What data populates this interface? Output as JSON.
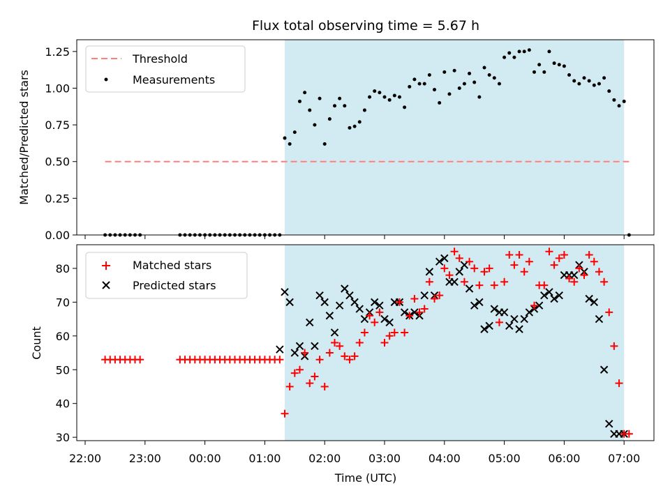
{
  "chart_data": [
    {
      "type": "scatter",
      "title": "Flux total observing time = 5.67 h",
      "xlabel": "",
      "ylabel": "Matched/Predicted stars",
      "ylim": [
        0,
        1.33
      ],
      "yticks": [
        "0.00",
        "0.25",
        "0.50",
        "0.75",
        "1.00",
        "1.25"
      ],
      "threshold": {
        "name": "Threshold",
        "value": 0.5,
        "color": "#ff7f7f"
      },
      "observing_window": {
        "start": "01:20",
        "end": "07:00",
        "color": "#add8e6"
      },
      "legend": {
        "position": "upper-left",
        "entries": [
          "Threshold",
          "Measurements"
        ]
      },
      "series": [
        {
          "name": "Measurements",
          "color": "#000000",
          "x": [
            "22:20",
            "22:25",
            "22:30",
            "22:35",
            "22:40",
            "22:45",
            "22:50",
            "22:55",
            "23:35",
            "23:40",
            "23:45",
            "23:50",
            "23:55",
            "00:00",
            "00:05",
            "00:10",
            "00:15",
            "00:20",
            "00:25",
            "00:30",
            "00:35",
            "00:40",
            "00:45",
            "00:50",
            "00:55",
            "01:00",
            "01:05",
            "01:10",
            "01:15",
            "01:20",
            "01:25",
            "01:30",
            "01:35",
            "01:40",
            "01:45",
            "01:50",
            "01:55",
            "02:00",
            "02:05",
            "02:10",
            "02:15",
            "02:20",
            "02:25",
            "02:30",
            "02:35",
            "02:40",
            "02:45",
            "02:50",
            "02:55",
            "03:00",
            "03:05",
            "03:10",
            "03:15",
            "03:20",
            "03:25",
            "03:30",
            "03:35",
            "03:40",
            "03:45",
            "03:50",
            "03:55",
            "04:00",
            "04:05",
            "04:10",
            "04:15",
            "04:20",
            "04:25",
            "04:30",
            "04:35",
            "04:40",
            "04:45",
            "04:50",
            "04:55",
            "05:00",
            "05:05",
            "05:10",
            "05:15",
            "05:20",
            "05:25",
            "05:30",
            "05:35",
            "05:40",
            "05:45",
            "05:50",
            "05:55",
            "06:00",
            "06:05",
            "06:10",
            "06:15",
            "06:20",
            "06:25",
            "06:30",
            "06:35",
            "06:40",
            "06:45",
            "06:50",
            "06:55",
            "07:00",
            "07:05"
          ],
          "y": [
            0,
            0,
            0,
            0,
            0,
            0,
            0,
            0,
            0,
            0,
            0,
            0,
            0,
            0,
            0,
            0,
            0,
            0,
            0,
            0,
            0,
            0,
            0,
            0,
            0,
            0,
            0,
            0,
            0,
            0.66,
            0.62,
            0.7,
            0.91,
            0.97,
            0.85,
            0.75,
            0.93,
            0.62,
            0.79,
            0.88,
            0.93,
            0.88,
            0.73,
            0.74,
            0.77,
            0.85,
            0.94,
            0.98,
            0.97,
            0.94,
            0.92,
            0.95,
            0.94,
            0.87,
            1.01,
            1.06,
            1.03,
            1.03,
            1.09,
            0.99,
            0.9,
            1.11,
            0.96,
            1.12,
            1.0,
            1.03,
            1.1,
            1.04,
            0.94,
            1.14,
            1.09,
            1.07,
            1.03,
            1.21,
            1.24,
            1.21,
            1.25,
            1.25,
            1.26,
            1.11,
            1.16,
            1.11,
            1.25,
            1.17,
            1.16,
            1.15,
            1.09,
            1.05,
            1.03,
            1.07,
            1.05,
            1.02,
            1.03,
            1.07,
            0.98,
            0.92,
            0.88,
            0.91,
            0
          ]
        }
      ]
    },
    {
      "type": "scatter",
      "title": "",
      "xlabel": "Time (UTC)",
      "ylabel": "Count",
      "ylim": [
        29,
        87
      ],
      "yticks": [
        "30",
        "40",
        "50",
        "60",
        "70",
        "80"
      ],
      "xticks": [
        "22:00",
        "23:00",
        "00:00",
        "01:00",
        "02:00",
        "03:00",
        "04:00",
        "05:00",
        "06:00",
        "07:00"
      ],
      "observing_window": {
        "start": "01:20",
        "end": "07:00",
        "color": "#add8e6"
      },
      "legend": {
        "position": "upper-left",
        "entries": [
          "Matched stars",
          "Predicted stars"
        ]
      },
      "series": [
        {
          "name": "Matched stars",
          "marker": "plus",
          "color": "#ff0000",
          "x": [
            "22:20",
            "22:25",
            "22:30",
            "22:35",
            "22:40",
            "22:45",
            "22:50",
            "22:55",
            "23:35",
            "23:40",
            "23:45",
            "23:50",
            "23:55",
            "00:00",
            "00:05",
            "00:10",
            "00:15",
            "00:20",
            "00:25",
            "00:30",
            "00:35",
            "00:40",
            "00:45",
            "00:50",
            "00:55",
            "01:00",
            "01:05",
            "01:10",
            "01:15",
            "01:20",
            "01:25",
            "01:30",
            "01:35",
            "01:40",
            "01:45",
            "01:50",
            "01:55",
            "02:00",
            "02:05",
            "02:10",
            "02:15",
            "02:20",
            "02:25",
            "02:30",
            "02:35",
            "02:40",
            "02:45",
            "02:50",
            "02:55",
            "03:00",
            "03:05",
            "03:10",
            "03:15",
            "03:20",
            "03:25",
            "03:30",
            "03:35",
            "03:40",
            "03:45",
            "03:50",
            "03:55",
            "04:00",
            "04:05",
            "04:10",
            "04:15",
            "04:20",
            "04:25",
            "04:30",
            "04:35",
            "04:40",
            "04:45",
            "04:50",
            "04:55",
            "05:00",
            "05:05",
            "05:10",
            "05:15",
            "05:20",
            "05:25",
            "05:30",
            "05:35",
            "05:40",
            "05:45",
            "05:50",
            "05:55",
            "06:00",
            "06:05",
            "06:10",
            "06:15",
            "06:20",
            "06:25",
            "06:30",
            "06:35",
            "06:40",
            "06:45",
            "06:50",
            "06:55",
            "07:00",
            "07:05"
          ],
          "y": [
            53,
            53,
            53,
            53,
            53,
            53,
            53,
            53,
            53,
            53,
            53,
            53,
            53,
            53,
            53,
            53,
            53,
            53,
            53,
            53,
            53,
            53,
            53,
            53,
            53,
            53,
            53,
            53,
            53,
            37,
            45,
            49,
            50,
            55,
            46,
            48,
            53,
            45,
            55,
            58,
            57,
            54,
            53,
            54,
            58,
            61,
            66,
            64,
            67,
            58,
            60,
            61,
            70,
            61,
            66,
            71,
            67,
            68,
            76,
            71,
            72,
            80,
            78,
            85,
            83,
            76,
            82,
            80,
            75,
            79,
            80,
            75,
            64,
            76,
            84,
            81,
            84,
            79,
            82,
            69,
            75,
            75,
            85,
            81,
            83,
            84,
            77,
            76,
            80,
            78,
            84,
            82,
            79,
            76,
            67,
            57,
            46,
            31,
            31
          ]
        },
        {
          "name": "Predicted stars",
          "marker": "x",
          "color": "#000000",
          "x": [
            "01:15",
            "01:20",
            "01:25",
            "01:30",
            "01:35",
            "01:40",
            "01:45",
            "01:50",
            "01:55",
            "02:00",
            "02:05",
            "02:10",
            "02:15",
            "02:20",
            "02:25",
            "02:30",
            "02:35",
            "02:40",
            "02:45",
            "02:50",
            "02:55",
            "03:00",
            "03:05",
            "03:10",
            "03:15",
            "03:20",
            "03:25",
            "03:30",
            "03:35",
            "03:40",
            "03:45",
            "03:50",
            "03:55",
            "04:00",
            "04:05",
            "04:10",
            "04:15",
            "04:20",
            "04:25",
            "04:30",
            "04:35",
            "04:40",
            "04:45",
            "04:50",
            "04:55",
            "05:00",
            "05:05",
            "05:10",
            "05:15",
            "05:20",
            "05:25",
            "05:30",
            "05:35",
            "05:40",
            "05:45",
            "05:50",
            "05:55",
            "06:00",
            "06:05",
            "06:10",
            "06:15",
            "06:20",
            "06:25",
            "06:30",
            "06:35",
            "06:40",
            "06:45",
            "06:50",
            "06:55",
            "07:00"
          ],
          "y": [
            56,
            73,
            70,
            55,
            57,
            54,
            64,
            57,
            72,
            70,
            66,
            61,
            69,
            74,
            72,
            70,
            68,
            65,
            67,
            70,
            69,
            65,
            64,
            70,
            70,
            67,
            66,
            67,
            66,
            72,
            79,
            72,
            82,
            83,
            76,
            76,
            79,
            81,
            74,
            69,
            70,
            62,
            63,
            68,
            67,
            67,
            63,
            65,
            62,
            65,
            67,
            68,
            69,
            72,
            73,
            71,
            72,
            78,
            78,
            78,
            81,
            79,
            71,
            70,
            65,
            50,
            34,
            31,
            31,
            31
          ]
        }
      ]
    }
  ]
}
